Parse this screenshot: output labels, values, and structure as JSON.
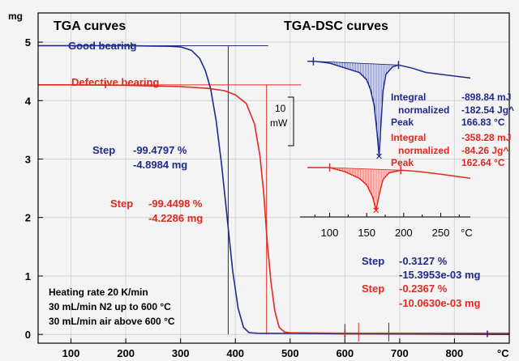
{
  "colors": {
    "blue": "#1f2a8c",
    "red": "#e0291f",
    "grid": "#d4d4d4",
    "frame": "#000000",
    "bg": "#f4f4f4"
  },
  "chart_data": [
    {
      "type": "line",
      "title": "TGA curves",
      "ylabel": "mg",
      "xlabel": "°C",
      "xlim": [
        40,
        900
      ],
      "ylim": [
        -0.15,
        5.5
      ],
      "x_ticks": [
        100,
        200,
        300,
        400,
        500,
        600,
        700,
        800
      ],
      "y_ticks": [
        0,
        1,
        2,
        3,
        4,
        5
      ],
      "grid": true,
      "series": [
        {
          "name": "Good bearing",
          "color": "#1f2a8c",
          "points": [
            [
              40,
              4.94
            ],
            [
              100,
              4.94
            ],
            [
              200,
              4.94
            ],
            [
              280,
              4.93
            ],
            [
              300,
              4.92
            ],
            [
              320,
              4.86
            ],
            [
              335,
              4.72
            ],
            [
              345,
              4.52
            ],
            [
              355,
              4.2
            ],
            [
              365,
              3.65
            ],
            [
              375,
              2.9
            ],
            [
              385,
              2.0
            ],
            [
              395,
              1.1
            ],
            [
              405,
              0.45
            ],
            [
              415,
              0.12
            ],
            [
              425,
              0.03
            ],
            [
              440,
              0.02
            ],
            [
              600,
              0.01
            ],
            [
              900,
              0.0
            ]
          ]
        },
        {
          "name": "Defective bearing",
          "color": "#e0291f",
          "points": [
            [
              40,
              4.27
            ],
            [
              100,
              4.27
            ],
            [
              200,
              4.26
            ],
            [
              300,
              4.24
            ],
            [
              350,
              4.21
            ],
            [
              380,
              4.17
            ],
            [
              400,
              4.1
            ],
            [
              420,
              3.95
            ],
            [
              435,
              3.6
            ],
            [
              445,
              3.05
            ],
            [
              452,
              2.4
            ],
            [
              458,
              1.6
            ],
            [
              465,
              0.9
            ],
            [
              472,
              0.4
            ],
            [
              480,
              0.12
            ],
            [
              490,
              0.04
            ],
            [
              500,
              0.03
            ],
            [
              600,
              0.02
            ],
            [
              900,
              0.02
            ]
          ]
        }
      ],
      "annotations": {
        "blue_step": {
          "label": "Step",
          "value1": "-99.4797 %",
          "value2": "-4.8984 mg"
        },
        "red_step": {
          "label": "Step",
          "value1": "-99.4498 %",
          "value2": "-4.2286 mg"
        },
        "blue_step2": {
          "label": "Step",
          "value1": "-0.3127 %",
          "value2": "-15.3953e-03 mg"
        },
        "red_step2": {
          "label": "Step",
          "value1": "-0.2367 %",
          "value2": "-10.0630e-03 mg"
        },
        "conditions": [
          "Heating rate 20 K/min",
          "30 mL/min N2 up to 600 °C",
          "30 mL/min air above 600 °C"
        ]
      }
    },
    {
      "type": "line",
      "title": "TGA-DSC curves",
      "xlabel": "°C",
      "xlim": [
        60,
        290
      ],
      "x_ticks": [
        100,
        150,
        200,
        250
      ],
      "scale_bar": {
        "value": "10",
        "unit": "mW"
      },
      "series": [
        {
          "name": "Good bearing",
          "color": "#1f2a8c",
          "integral_start": 78,
          "integral_end": 193,
          "points": [
            [
              70,
              0.2
            ],
            [
              80,
              0.2
            ],
            [
              100,
              0.0
            ],
            [
              120,
              -0.5
            ],
            [
              140,
              -1.0
            ],
            [
              150,
              -1.8
            ],
            [
              155,
              -2.8
            ],
            [
              160,
              -4.5
            ],
            [
              164,
              -7.5
            ],
            [
              166.83,
              -10.0
            ],
            [
              169,
              -7.0
            ],
            [
              172,
              -3.0
            ],
            [
              176,
              -1.2
            ],
            [
              185,
              -0.4
            ],
            [
              193,
              -0.2
            ],
            [
              210,
              -0.5
            ],
            [
              230,
              -1.0
            ],
            [
              260,
              -1.3
            ],
            [
              290,
              -1.6
            ]
          ],
          "integral": "-898.84 mJ",
          "normalized": "-182.54 Jg^",
          "peak": "166.83 °C"
        },
        {
          "name": "Defective bearing",
          "color": "#e0291f",
          "integral_start": 100,
          "integral_end": 196,
          "points": [
            [
              70,
              0.0
            ],
            [
              90,
              0.0
            ],
            [
              100,
              0.0
            ],
            [
              120,
              -0.3
            ],
            [
              140,
              -0.8
            ],
            [
              150,
              -1.3
            ],
            [
              158,
              -2.2
            ],
            [
              162.64,
              -3.2
            ],
            [
              167,
              -2.0
            ],
            [
              172,
              -0.9
            ],
            [
              180,
              -0.4
            ],
            [
              196,
              -0.2
            ],
            [
              220,
              -0.3
            ],
            [
              250,
              -0.5
            ],
            [
              290,
              -0.8
            ]
          ],
          "integral": "-358.28 mJ",
          "normalized": "-84.26 Jg^",
          "peak": "162.64 °C"
        }
      ],
      "labels": {
        "integral": "Integral",
        "normalized": "normalized",
        "peak": "Peak"
      }
    }
  ]
}
